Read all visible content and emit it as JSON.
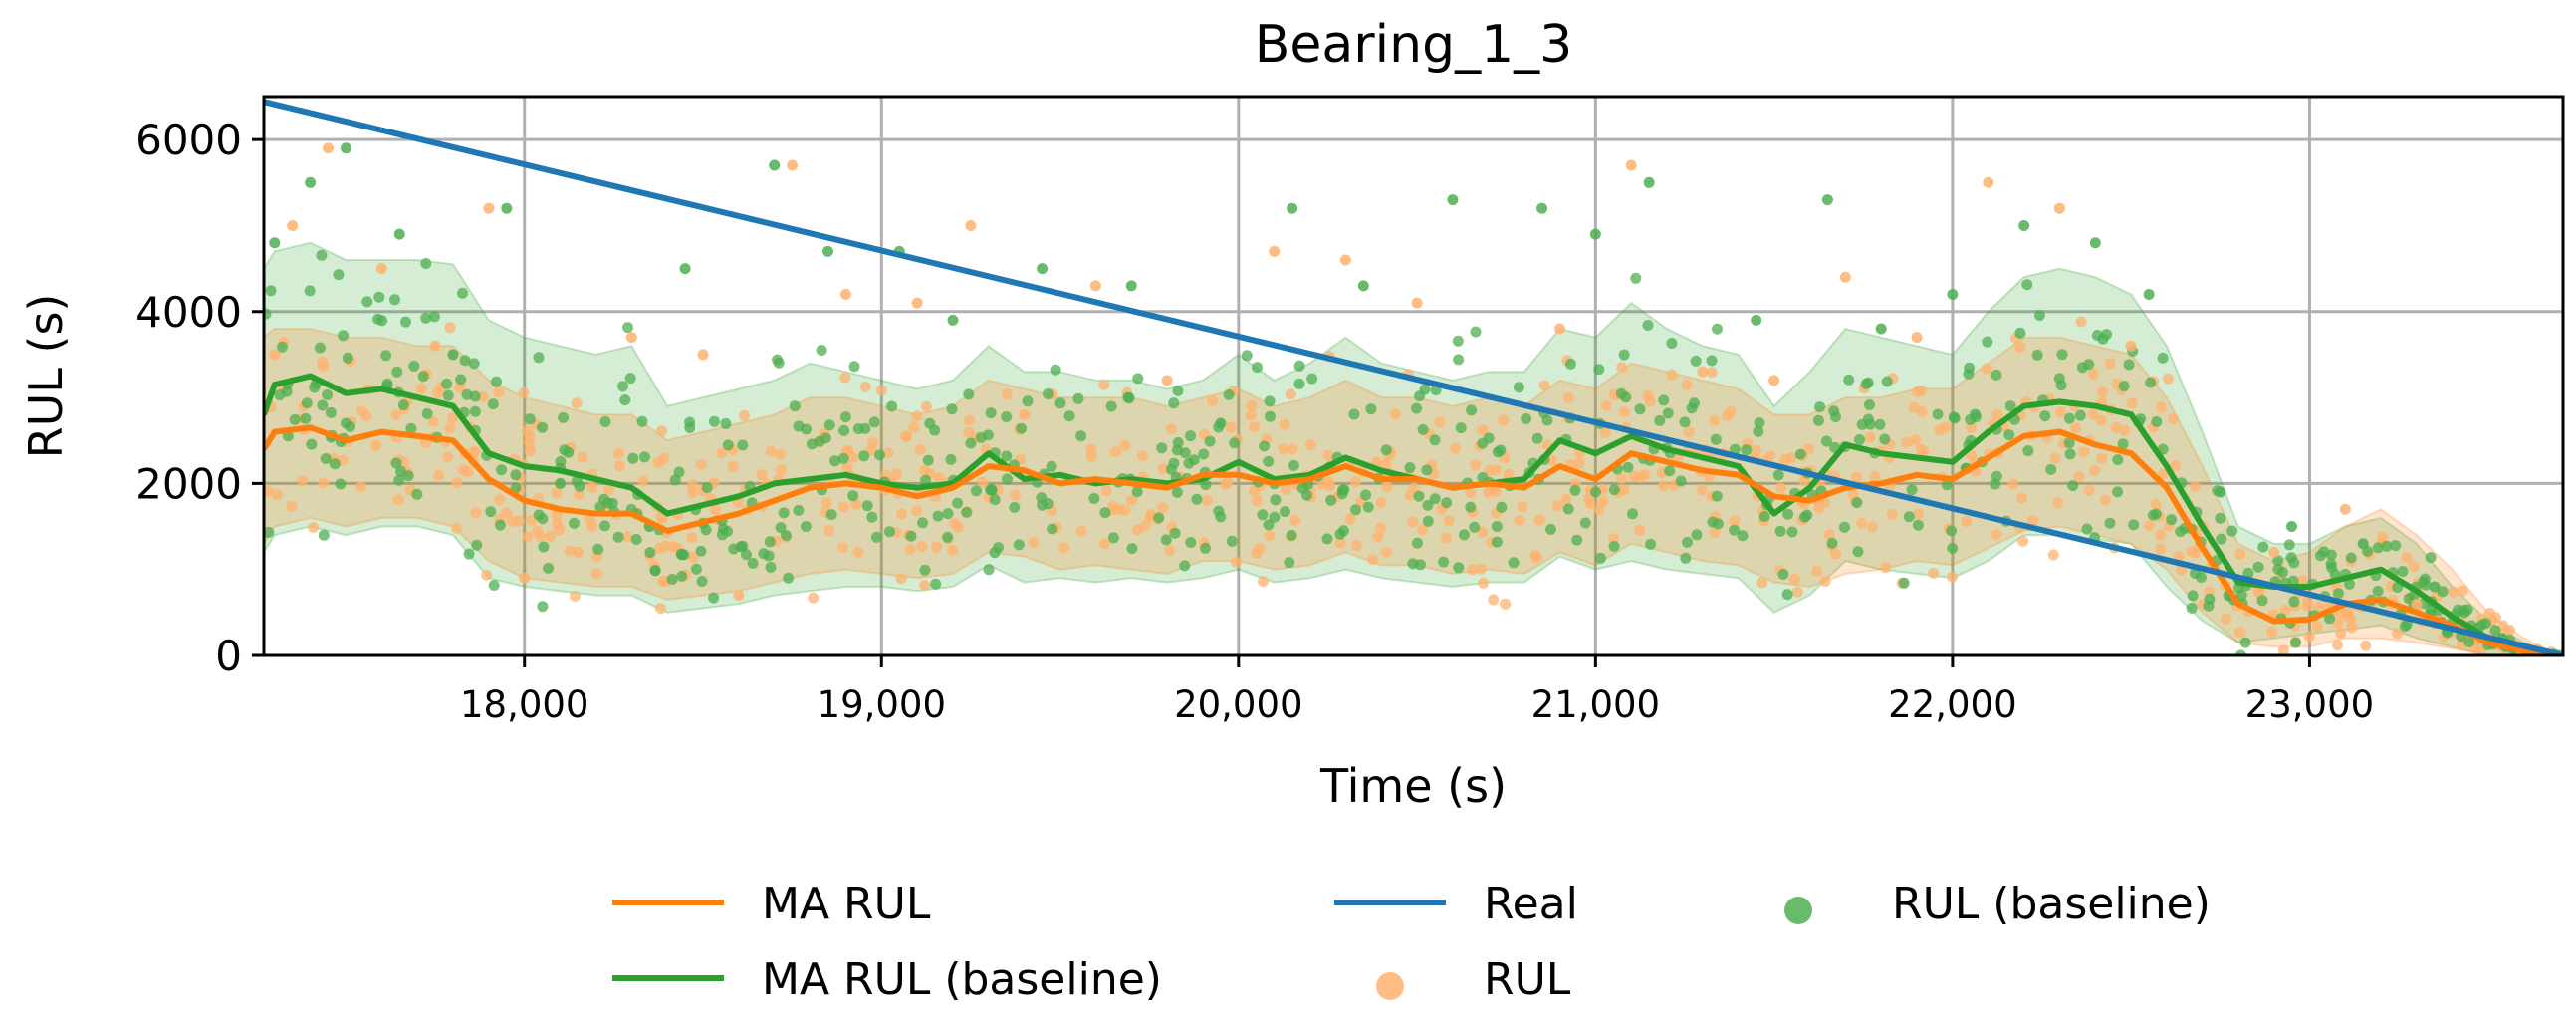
{
  "chart_data": {
    "type": "line",
    "title": "Bearing_1_3",
    "xlabel": "Time (s)",
    "ylabel": "RUL (s)",
    "xlim": [
      17270,
      23710
    ],
    "ylim": [
      0,
      6500
    ],
    "x_ticks": [
      18000,
      19000,
      20000,
      21000,
      22000,
      23000
    ],
    "x_tick_labels": [
      "18,000",
      "19,000",
      "20,000",
      "21,000",
      "22,000",
      "23,000"
    ],
    "y_ticks": [
      0,
      2000,
      4000,
      6000
    ],
    "y_tick_labels": [
      "0",
      "2000",
      "4000",
      "6000"
    ],
    "grid": true,
    "legend_position": "bottom-center",
    "colors": {
      "ma_rul": "#ff7f0e",
      "ma_rul_baseline": "#2ca02c",
      "real": "#1f77b4",
      "rul_points": "#ffb26e",
      "rul_baseline_points": "#4caf50"
    },
    "legend": [
      {
        "label": "MA RUL",
        "kind": "line",
        "color": "#ff7f0e"
      },
      {
        "label": "MA RUL (baseline)",
        "kind": "line",
        "color": "#2ca02c"
      },
      {
        "label": "Real",
        "kind": "line",
        "color": "#1f77b4"
      },
      {
        "label": "RUL",
        "kind": "marker",
        "color": "#ffb26e"
      },
      {
        "label": "RUL (baseline)",
        "kind": "marker",
        "color": "#4caf50"
      }
    ],
    "series": [
      {
        "name": "Real",
        "x": [
          17270,
          23710
        ],
        "y": [
          6440,
          0
        ]
      },
      {
        "name": "MA RUL (baseline)",
        "x": [
          17270,
          17300,
          17400,
          17500,
          17600,
          17700,
          17800,
          17900,
          18000,
          18100,
          18200,
          18300,
          18400,
          18500,
          18600,
          18700,
          18800,
          18900,
          19000,
          19100,
          19200,
          19300,
          19400,
          19500,
          19600,
          19700,
          19800,
          19900,
          20000,
          20100,
          20200,
          20300,
          20400,
          20500,
          20600,
          20700,
          20800,
          20900,
          21000,
          21100,
          21200,
          21300,
          21400,
          21500,
          21600,
          21700,
          21800,
          21900,
          22000,
          22100,
          22200,
          22300,
          22400,
          22500,
          22600,
          22700,
          22800,
          22900,
          23000,
          23100,
          23200,
          23300,
          23400,
          23500,
          23600,
          23700
        ],
        "y": [
          2800,
          3150,
          3250,
          3050,
          3100,
          3000,
          2900,
          2350,
          2200,
          2150,
          2050,
          1950,
          1650,
          1750,
          1850,
          2000,
          2050,
          2100,
          2000,
          1950,
          2000,
          2350,
          2050,
          2100,
          2000,
          2050,
          2000,
          2050,
          2250,
          2050,
          2100,
          2300,
          2150,
          2050,
          1950,
          2000,
          2050,
          2500,
          2350,
          2550,
          2400,
          2300,
          2200,
          1650,
          1950,
          2450,
          2350,
          2300,
          2250,
          2600,
          2900,
          2950,
          2900,
          2800,
          2200,
          1500,
          850,
          800,
          800,
          900,
          1000,
          750,
          450,
          200,
          80,
          0
        ]
      },
      {
        "name": "MA RUL",
        "x": [
          17270,
          17300,
          17400,
          17500,
          17600,
          17700,
          17800,
          17900,
          18000,
          18100,
          18200,
          18300,
          18400,
          18500,
          18600,
          18700,
          18800,
          18900,
          19000,
          19100,
          19200,
          19300,
          19400,
          19500,
          19600,
          19700,
          19800,
          19900,
          20000,
          20100,
          20200,
          20300,
          20400,
          20500,
          20600,
          20700,
          20800,
          20900,
          21000,
          21100,
          21200,
          21300,
          21400,
          21500,
          21600,
          21700,
          21800,
          21900,
          22000,
          22100,
          22200,
          22300,
          22400,
          22500,
          22600,
          22700,
          22800,
          22900,
          23000,
          23100,
          23200,
          23300,
          23400,
          23500,
          23600,
          23700
        ],
        "y": [
          2400,
          2600,
          2650,
          2500,
          2600,
          2550,
          2500,
          2050,
          1800,
          1700,
          1650,
          1650,
          1450,
          1550,
          1650,
          1800,
          1950,
          2000,
          1950,
          1850,
          1950,
          2200,
          2150,
          2000,
          2050,
          2000,
          1950,
          2100,
          2100,
          2000,
          2050,
          2200,
          2050,
          2050,
          1950,
          2000,
          1950,
          2200,
          2050,
          2350,
          2250,
          2150,
          2100,
          1850,
          1800,
          1950,
          2000,
          2100,
          2050,
          2300,
          2550,
          2600,
          2450,
          2350,
          1950,
          1250,
          600,
          400,
          420,
          600,
          650,
          500,
          350,
          150,
          50,
          0
        ]
      },
      {
        "name": "MA RUL (baseline) band",
        "x": [
          17270,
          17300,
          17400,
          17500,
          17600,
          17700,
          17800,
          17900,
          18000,
          18100,
          18200,
          18300,
          18400,
          18500,
          18600,
          18700,
          18800,
          18900,
          19000,
          19100,
          19200,
          19300,
          19400,
          19500,
          19600,
          19700,
          19800,
          19900,
          20000,
          20100,
          20200,
          20300,
          20400,
          20500,
          20600,
          20700,
          20800,
          20900,
          21000,
          21100,
          21200,
          21300,
          21400,
          21500,
          21600,
          21700,
          21800,
          21900,
          22000,
          22100,
          22200,
          22300,
          22400,
          22500,
          22600,
          22700,
          22800,
          22900,
          23000,
          23100,
          23200,
          23300,
          23400,
          23500,
          23600,
          23700
        ],
        "upper": [
          4500,
          4700,
          4800,
          4600,
          4600,
          4600,
          4550,
          3900,
          3700,
          3600,
          3500,
          3600,
          2900,
          3000,
          3100,
          3200,
          3400,
          3300,
          3200,
          3100,
          3200,
          3600,
          3300,
          3300,
          3200,
          3200,
          3100,
          3200,
          3500,
          3200,
          3400,
          3700,
          3400,
          3300,
          3200,
          3300,
          3300,
          3800,
          3700,
          4100,
          3800,
          3600,
          3500,
          2900,
          3300,
          3800,
          3700,
          3600,
          3500,
          4000,
          4400,
          4500,
          4400,
          4200,
          3600,
          2600,
          1500,
          1300,
          1300,
          1500,
          1600,
          1300,
          800,
          400,
          150,
          0
        ],
        "lower": [
          1200,
          1400,
          1500,
          1400,
          1500,
          1500,
          1400,
          900,
          800,
          750,
          700,
          700,
          500,
          550,
          600,
          700,
          750,
          800,
          800,
          750,
          800,
          1050,
          850,
          900,
          850,
          900,
          850,
          900,
          1000,
          850,
          900,
          1000,
          900,
          850,
          800,
          850,
          850,
          1150,
          1000,
          1100,
          1000,
          950,
          900,
          500,
          700,
          1100,
          1000,
          950,
          900,
          1100,
          1400,
          1400,
          1350,
          1300,
          800,
          400,
          150,
          200,
          250,
          300,
          350,
          200,
          100,
          0,
          0,
          0
        ]
      },
      {
        "name": "MA RUL band",
        "x": [
          17270,
          17300,
          17400,
          17500,
          17600,
          17700,
          17800,
          17900,
          18000,
          18100,
          18200,
          18300,
          18400,
          18500,
          18600,
          18700,
          18800,
          18900,
          19000,
          19100,
          19200,
          19300,
          19400,
          19500,
          19600,
          19700,
          19800,
          19900,
          20000,
          20100,
          20200,
          20300,
          20400,
          20500,
          20600,
          20700,
          20800,
          20900,
          21000,
          21100,
          21200,
          21300,
          21400,
          21500,
          21600,
          21700,
          21800,
          21900,
          22000,
          22100,
          22200,
          22300,
          22400,
          22500,
          22600,
          22700,
          22800,
          22900,
          23000,
          23100,
          23200,
          23300,
          23400,
          23500,
          23600,
          23700
        ],
        "upper": [
          3700,
          3800,
          3800,
          3700,
          3700,
          3600,
          3600,
          3200,
          3000,
          2900,
          2800,
          2800,
          2500,
          2600,
          2700,
          2800,
          3000,
          3000,
          2900,
          2800,
          2900,
          3200,
          3100,
          3000,
          3000,
          3000,
          2900,
          3000,
          3100,
          2900,
          3000,
          3200,
          3000,
          3000,
          2900,
          3000,
          2900,
          3200,
          3100,
          3400,
          3300,
          3200,
          3100,
          2800,
          2800,
          3000,
          3000,
          3100,
          3100,
          3400,
          3700,
          3700,
          3600,
          3500,
          3000,
          2200,
          1300,
          1100,
          1200,
          1500,
          1700,
          1400,
          1000,
          500,
          200,
          0
        ],
        "lower": [
          1300,
          1500,
          1600,
          1500,
          1600,
          1600,
          1500,
          1100,
          900,
          850,
          800,
          800,
          650,
          700,
          750,
          850,
          950,
          1000,
          950,
          900,
          950,
          1200,
          1150,
          1000,
          1050,
          1000,
          950,
          1100,
          1100,
          1000,
          1050,
          1200,
          1050,
          1050,
          950,
          1000,
          950,
          1200,
          1050,
          1300,
          1200,
          1100,
          1050,
          850,
          800,
          950,
          1000,
          1100,
          1050,
          1250,
          1450,
          1500,
          1400,
          1300,
          1000,
          500,
          150,
          100,
          100,
          200,
          200,
          150,
          80,
          0,
          0,
          0
        ]
      },
      {
        "name": "RUL (scatter)",
        "note": "hundreds of per-sample points scattered around MA RUL, range approx. 0-5700",
        "sample_points": [
          [
            17300,
            3500
          ],
          [
            17350,
            5000
          ],
          [
            17450,
            5900
          ],
          [
            17600,
            4500
          ],
          [
            17750,
            3600
          ],
          [
            17900,
            5200
          ],
          [
            18000,
            900
          ],
          [
            18150,
            1200
          ],
          [
            18300,
            3700
          ],
          [
            18500,
            3500
          ],
          [
            18600,
            700
          ],
          [
            18750,
            5700
          ],
          [
            18900,
            4200
          ],
          [
            19100,
            4100
          ],
          [
            19250,
            5000
          ],
          [
            19400,
            2800
          ],
          [
            19600,
            4300
          ],
          [
            19800,
            3200
          ],
          [
            20100,
            4700
          ],
          [
            20300,
            4600
          ],
          [
            20500,
            4100
          ],
          [
            20700,
            1900
          ],
          [
            20900,
            3800
          ],
          [
            21100,
            5700
          ],
          [
            21300,
            3300
          ],
          [
            21500,
            3200
          ],
          [
            21700,
            4400
          ],
          [
            21900,
            3700
          ],
          [
            22100,
            5500
          ],
          [
            22300,
            5200
          ],
          [
            22500,
            3600
          ],
          [
            22700,
            1500
          ],
          [
            22900,
            1200
          ],
          [
            23100,
            1700
          ],
          [
            23300,
            600
          ],
          [
            23500,
            200
          ]
        ]
      },
      {
        "name": "RUL (baseline, scatter)",
        "note": "hundreds of per-sample points scattered around MA RUL (baseline), range approx. 0-5900",
        "sample_points": [
          [
            17300,
            4800
          ],
          [
            17400,
            5500
          ],
          [
            17500,
            5900
          ],
          [
            17650,
            4900
          ],
          [
            17800,
            3500
          ],
          [
            17950,
            5200
          ],
          [
            18100,
            2000
          ],
          [
            18350,
            1500
          ],
          [
            18450,
            4500
          ],
          [
            18700,
            5700
          ],
          [
            18850,
            4700
          ],
          [
            19050,
            4700
          ],
          [
            19200,
            3900
          ],
          [
            19450,
            4500
          ],
          [
            19700,
            4300
          ],
          [
            19950,
            2700
          ],
          [
            20150,
            5200
          ],
          [
            20350,
            4300
          ],
          [
            20600,
            5300
          ],
          [
            20850,
            5200
          ],
          [
            21000,
            4900
          ],
          [
            21150,
            5500
          ],
          [
            21450,
            3900
          ],
          [
            21650,
            5300
          ],
          [
            21800,
            3800
          ],
          [
            22000,
            4200
          ],
          [
            22200,
            5000
          ],
          [
            22400,
            4800
          ],
          [
            22550,
            4200
          ],
          [
            22750,
            1900
          ],
          [
            22950,
            1500
          ],
          [
            23150,
            1300
          ],
          [
            23350,
            800
          ],
          [
            23550,
            100
          ]
        ]
      }
    ]
  }
}
